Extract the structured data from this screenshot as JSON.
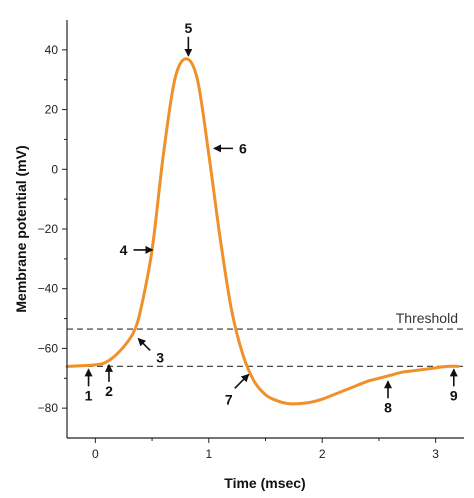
{
  "chart_data": {
    "type": "line",
    "title": "",
    "xlabel": "Time (msec)",
    "ylabel": "Membrane potential (mV)",
    "xlim": [
      -0.25,
      3.25
    ],
    "ylim": [
      -90,
      50
    ],
    "x_ticks": [
      0,
      1,
      2,
      3
    ],
    "y_ticks": [
      40,
      20,
      0,
      -20,
      -40,
      -60,
      -80
    ],
    "grid": false,
    "line_color": "#f0902a",
    "series": [
      {
        "x": [
          -0.25,
          0.0,
          0.1,
          0.2,
          0.3,
          0.35,
          0.4,
          0.5,
          0.6,
          0.7,
          0.8,
          0.9,
          1.0,
          1.1,
          1.2,
          1.3,
          1.4,
          1.5,
          1.6,
          1.7,
          1.8,
          1.9,
          2.0,
          2.1,
          2.2,
          2.3,
          2.4,
          2.5,
          2.6,
          2.7,
          2.8,
          2.9,
          3.0,
          3.1,
          3.2
        ],
        "y": [
          -66,
          -65.5,
          -64.5,
          -61.5,
          -57,
          -53.5,
          -47,
          -27,
          5,
          30,
          37,
          30,
          5,
          -23,
          -47,
          -62,
          -71,
          -75.5,
          -77.5,
          -78.5,
          -78.5,
          -78,
          -77,
          -75.5,
          -74,
          -72.5,
          -71,
          -70,
          -69,
          -68,
          -67.5,
          -67,
          -66.5,
          -66,
          -66
        ]
      }
    ],
    "threshold": {
      "value": -53.5,
      "label": "Threshold"
    },
    "resting_line": {
      "value": -66
    },
    "annotations": [
      {
        "label": "1",
        "x": -0.06,
        "y": -66
      },
      {
        "label": "2",
        "x": 0.12,
        "y": -64.5
      },
      {
        "label": "3",
        "x": 0.36,
        "y": -56
      },
      {
        "label": "4",
        "x": 0.53,
        "y": -27
      },
      {
        "label": "5",
        "x": 0.82,
        "y": 37
      },
      {
        "label": "6",
        "x": 1.02,
        "y": 7
      },
      {
        "label": "7",
        "x": 1.37,
        "y": -68
      },
      {
        "label": "8",
        "x": 2.58,
        "y": -70
      },
      {
        "label": "9",
        "x": 3.16,
        "y": -66
      }
    ]
  }
}
